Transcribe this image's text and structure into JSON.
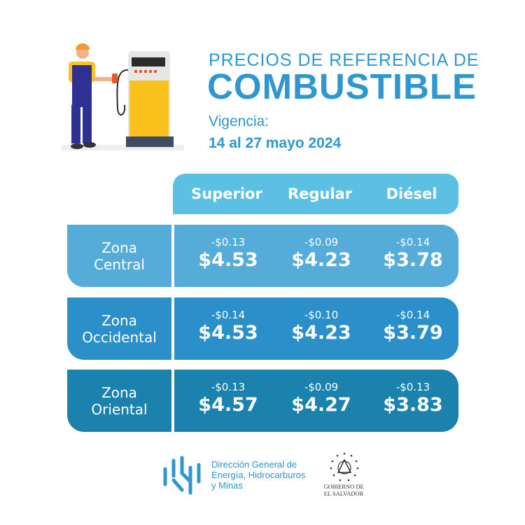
{
  "header": {
    "line1": "PRECIOS DE REFERENCIA DE",
    "line2": "COMBUSTIBLE",
    "validity_label": "Vigencia:",
    "validity_dates": "14 al 27 mayo 2024"
  },
  "table": {
    "columns": [
      "Superior",
      "Regular",
      "Diésel"
    ],
    "rows": [
      {
        "zone_line1": "Zona",
        "zone_line2": "Central",
        "cells": [
          {
            "change": "-$0.13",
            "price": "$4.53"
          },
          {
            "change": "-$0.09",
            "price": "$4.23"
          },
          {
            "change": "-$0.14",
            "price": "$3.78"
          }
        ]
      },
      {
        "zone_line1": "Zona",
        "zone_line2": "Occidental",
        "cells": [
          {
            "change": "-$0.14",
            "price": "$4.53"
          },
          {
            "change": "-$0.10",
            "price": "$4.23"
          },
          {
            "change": "-$0.14",
            "price": "$3.79"
          }
        ]
      },
      {
        "zone_line1": "Zona",
        "zone_line2": "Oriental",
        "cells": [
          {
            "change": "-$0.13",
            "price": "$4.57"
          },
          {
            "change": "-$0.09",
            "price": "$4.27"
          },
          {
            "change": "-$0.13",
            "price": "$3.83"
          }
        ]
      }
    ]
  },
  "footer": {
    "org_line1": "Dirección General de",
    "org_line2": "Energía, Hidrocarburos",
    "org_line3": "y Minas",
    "gov_line1": "GOBIERNO DE",
    "gov_line2": "EL SALVADOR"
  },
  "colors": {
    "title": "#2f97cf",
    "header_row": "#5cc0e5",
    "zone_central": "#55acd9",
    "zone_occidental": "#2b8fc9",
    "zone_oriental": "#1a82ad"
  }
}
